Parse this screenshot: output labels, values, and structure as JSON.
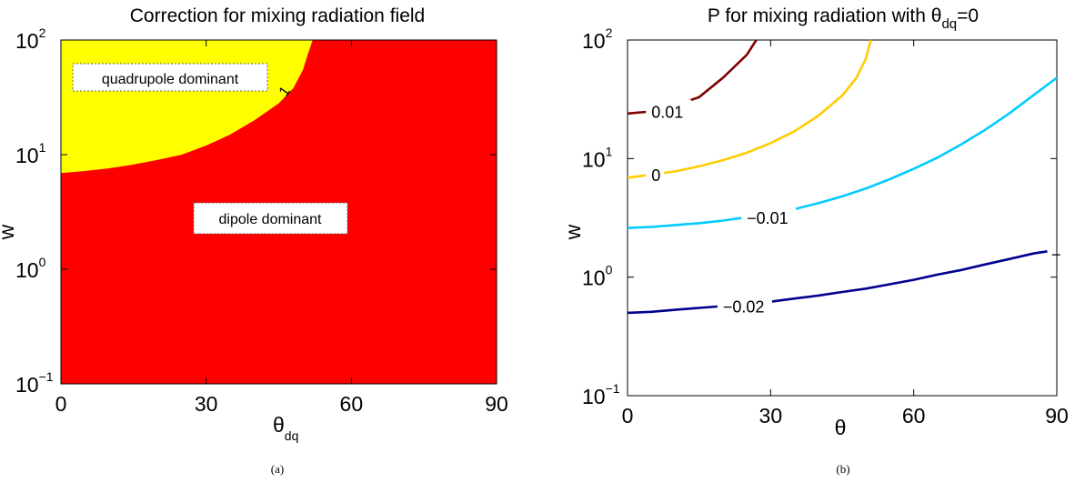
{
  "chart_data": [
    {
      "type": "filled-contour",
      "title": "Correction for mixing radiation field",
      "xlabel_base": "θ",
      "xlabel_sub": "dq",
      "ylabel": "w",
      "x_ticks": [
        "0",
        "30",
        "60",
        "90"
      ],
      "x_tick_values": [
        0,
        30,
        60,
        90
      ],
      "y_ticks": [
        {
          "base": "10",
          "exp": "−1"
        },
        {
          "base": "10",
          "exp": "0"
        },
        {
          "base": "10",
          "exp": "1"
        },
        {
          "base": "10",
          "exp": "2"
        }
      ],
      "y_tick_values": [
        0.1,
        1,
        10,
        100
      ],
      "xlim": [
        0,
        90
      ],
      "ylim": [
        0.1,
        100
      ],
      "y_scale": "log",
      "regions": [
        {
          "label": "quadrupole dominant",
          "color": "#ffff00"
        },
        {
          "label": "dipole dominant",
          "color": "#ff0000"
        }
      ],
      "boundary_contour": {
        "level_label": "1",
        "x": [
          0,
          5,
          10,
          15,
          20,
          25,
          30,
          35,
          40,
          45,
          48,
          50,
          51,
          52
        ],
        "y": [
          6.9,
          7.2,
          7.6,
          8.2,
          9.0,
          10.0,
          12.0,
          15.0,
          20.0,
          28.0,
          38.0,
          55.0,
          75.0,
          100.0
        ]
      },
      "caption": "(a)"
    },
    {
      "type": "contour",
      "title_prefix": "P for mixing radiation with θ",
      "title_sub": "dq",
      "title_suffix": "=0",
      "xlabel": "θ",
      "ylabel": "w",
      "x_ticks": [
        "0",
        "30",
        "60",
        "90"
      ],
      "x_tick_values": [
        0,
        30,
        60,
        90
      ],
      "y_ticks": [
        {
          "base": "10",
          "exp": "−1"
        },
        {
          "base": "10",
          "exp": "0"
        },
        {
          "base": "10",
          "exp": "1"
        },
        {
          "base": "10",
          "exp": "2"
        }
      ],
      "y_tick_values": [
        0.1,
        1,
        10,
        100
      ],
      "xlim": [
        0,
        90
      ],
      "ylim": [
        0.1,
        100
      ],
      "y_scale": "log",
      "series": [
        {
          "label": "0.01",
          "color": "#7f0000",
          "x": [
            0,
            5,
            10,
            15,
            20,
            25,
            27
          ],
          "y": [
            24,
            25,
            28,
            33,
            48,
            75,
            100
          ]
        },
        {
          "label": "0",
          "color": "#ffcc00",
          "x": [
            0,
            5,
            10,
            15,
            20,
            25,
            30,
            35,
            40,
            45,
            48,
            50,
            51
          ],
          "y": [
            6.9,
            7.3,
            7.8,
            8.6,
            9.7,
            11.2,
            13.5,
            17,
            23,
            34,
            48,
            70,
            100
          ]
        },
        {
          "label": "−0.01",
          "color": "#00ccff",
          "x": [
            0,
            5,
            10,
            15,
            20,
            25,
            30,
            35,
            40,
            45,
            50,
            55,
            60,
            65,
            70,
            75,
            80,
            85,
            90
          ],
          "y": [
            2.6,
            2.65,
            2.75,
            2.85,
            3.0,
            3.2,
            3.45,
            3.75,
            4.2,
            4.8,
            5.6,
            6.7,
            8.2,
            10.2,
            13.2,
            17.5,
            24,
            34,
            48
          ]
        },
        {
          "label": "−0.02",
          "color": "#00008f",
          "x": [
            0,
            5,
            10,
            15,
            20,
            25,
            30,
            35,
            40,
            45,
            50,
            55,
            60,
            65,
            70,
            75,
            80,
            85,
            88
          ],
          "y": [
            0.5,
            0.51,
            0.53,
            0.55,
            0.57,
            0.59,
            0.62,
            0.66,
            0.7,
            0.75,
            0.8,
            0.87,
            0.95,
            1.05,
            1.15,
            1.28,
            1.42,
            1.58,
            1.65
          ]
        }
      ],
      "edge_label": "−",
      "caption": "(b)"
    }
  ]
}
